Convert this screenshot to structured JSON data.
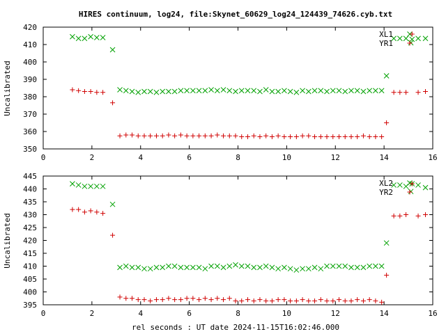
{
  "chart_data": [
    {
      "type": "scatter",
      "title": "HIRES continuum, log24, file:Skynet_60629_log24_124439_74626.cyb.txt",
      "xlabel": "",
      "ylabel": "Uncalibrated",
      "xlim": [
        0,
        16
      ],
      "ylim": [
        350,
        420
      ],
      "xticks": [
        0,
        2,
        4,
        6,
        8,
        10,
        12,
        14,
        16
      ],
      "yticks": [
        350,
        360,
        370,
        380,
        390,
        400,
        410,
        420
      ],
      "grid": false,
      "legend_position": "top-right",
      "series": [
        {
          "name": "XL1",
          "marker": "x",
          "color": "#00a000",
          "x": [
            1.2,
            1.45,
            1.7,
            1.95,
            2.2,
            2.45,
            2.85,
            3.15,
            3.4,
            3.65,
            3.9,
            4.15,
            4.4,
            4.65,
            4.9,
            5.15,
            5.4,
            5.65,
            5.9,
            6.15,
            6.4,
            6.65,
            6.9,
            7.15,
            7.4,
            7.65,
            7.9,
            8.15,
            8.4,
            8.65,
            8.9,
            9.15,
            9.4,
            9.65,
            9.9,
            10.15,
            10.4,
            10.65,
            10.9,
            11.15,
            11.4,
            11.65,
            11.9,
            12.15,
            12.4,
            12.65,
            12.9,
            13.15,
            13.4,
            13.65,
            13.9,
            14.1,
            14.4,
            14.65,
            14.9,
            15.1,
            15.15,
            15.4,
            15.7
          ],
          "y": [
            414.5,
            413.5,
            413.5,
            414.5,
            414.0,
            414.0,
            407.0,
            384.0,
            383.5,
            383.0,
            382.5,
            383.0,
            383.0,
            382.5,
            383.0,
            383.0,
            383.0,
            383.5,
            383.5,
            383.5,
            383.5,
            383.5,
            384.0,
            383.5,
            384.0,
            383.5,
            383.0,
            383.5,
            383.5,
            383.5,
            383.0,
            384.0,
            383.0,
            383.0,
            383.5,
            383.0,
            382.5,
            383.5,
            383.0,
            383.5,
            383.5,
            383.0,
            383.5,
            383.5,
            383.0,
            383.5,
            383.5,
            383.0,
            383.5,
            383.5,
            383.5,
            392.0,
            413.5,
            413.5,
            413.5,
            411.0,
            413.0,
            413.5,
            413.5
          ]
        },
        {
          "name": "YR1",
          "marker": "+",
          "color": "#d00000",
          "x": [
            1.2,
            1.45,
            1.7,
            1.95,
            2.2,
            2.45,
            2.85,
            3.15,
            3.4,
            3.65,
            3.9,
            4.15,
            4.4,
            4.65,
            4.9,
            5.15,
            5.4,
            5.65,
            5.9,
            6.15,
            6.4,
            6.65,
            6.9,
            7.15,
            7.4,
            7.65,
            7.9,
            8.15,
            8.4,
            8.65,
            8.9,
            9.15,
            9.4,
            9.65,
            9.9,
            10.15,
            10.4,
            10.65,
            10.9,
            11.15,
            11.4,
            11.65,
            11.9,
            12.15,
            12.4,
            12.65,
            12.9,
            13.15,
            13.4,
            13.65,
            13.9,
            14.1,
            14.4,
            14.65,
            14.9,
            15.15,
            15.4,
            15.7
          ],
          "y": [
            384.0,
            383.5,
            383.0,
            383.0,
            382.5,
            382.5,
            376.5,
            357.5,
            358.0,
            358.0,
            357.5,
            357.5,
            357.5,
            357.5,
            357.5,
            358.0,
            357.5,
            358.0,
            357.5,
            357.5,
            357.5,
            357.5,
            357.5,
            358.0,
            357.5,
            357.5,
            357.5,
            357.0,
            357.0,
            357.5,
            357.0,
            357.5,
            357.0,
            357.5,
            357.0,
            357.0,
            357.0,
            357.5,
            357.5,
            357.0,
            357.0,
            357.0,
            357.0,
            357.0,
            357.0,
            357.0,
            357.0,
            357.5,
            357.0,
            357.0,
            357.0,
            365.0,
            382.5,
            382.5,
            382.5,
            416.0,
            382.5,
            383.0
          ]
        }
      ]
    },
    {
      "type": "scatter",
      "title": "",
      "xlabel": "rel seconds : UT date 2024-11-15T16:02:46.000",
      "ylabel": "Uncalibrated",
      "xlim": [
        0,
        16
      ],
      "ylim": [
        395,
        445
      ],
      "xticks": [
        0,
        2,
        4,
        6,
        8,
        10,
        12,
        14,
        16
      ],
      "yticks": [
        395,
        400,
        405,
        410,
        415,
        420,
        425,
        430,
        435,
        440,
        445
      ],
      "grid": false,
      "legend_position": "top-right",
      "series": [
        {
          "name": "XL2",
          "marker": "x",
          "color": "#00a000",
          "x": [
            1.2,
            1.45,
            1.7,
            1.95,
            2.2,
            2.45,
            2.85,
            3.15,
            3.4,
            3.65,
            3.9,
            4.15,
            4.4,
            4.65,
            4.9,
            5.15,
            5.4,
            5.65,
            5.9,
            6.15,
            6.4,
            6.65,
            6.9,
            7.15,
            7.4,
            7.65,
            7.9,
            8.15,
            8.4,
            8.65,
            8.9,
            9.15,
            9.4,
            9.65,
            9.9,
            10.15,
            10.4,
            10.65,
            10.9,
            11.15,
            11.4,
            11.65,
            11.9,
            12.15,
            12.4,
            12.65,
            12.9,
            13.15,
            13.4,
            13.65,
            13.9,
            14.1,
            14.4,
            14.65,
            14.9,
            15.1,
            15.15,
            15.4,
            15.7
          ],
          "y": [
            442.0,
            441.5,
            441.0,
            441.0,
            441.0,
            441.0,
            434.0,
            409.5,
            410.0,
            409.5,
            409.5,
            409.0,
            409.0,
            409.5,
            409.5,
            410.0,
            410.0,
            409.5,
            409.5,
            409.5,
            409.5,
            409.0,
            410.0,
            410.0,
            409.5,
            410.0,
            410.5,
            410.0,
            410.0,
            409.5,
            409.5,
            410.0,
            409.5,
            409.0,
            409.5,
            409.0,
            408.5,
            409.0,
            409.0,
            409.5,
            409.0,
            410.0,
            410.0,
            410.0,
            410.0,
            409.5,
            409.5,
            409.5,
            410.0,
            410.0,
            410.0,
            419.0,
            441.5,
            441.5,
            441.0,
            439.0,
            442.0,
            441.5,
            440.5
          ]
        },
        {
          "name": "YR2",
          "marker": "+",
          "color": "#d00000",
          "x": [
            1.2,
            1.45,
            1.7,
            1.95,
            2.2,
            2.45,
            2.85,
            3.15,
            3.4,
            3.65,
            3.9,
            4.15,
            4.4,
            4.65,
            4.9,
            5.15,
            5.4,
            5.65,
            5.9,
            6.15,
            6.4,
            6.65,
            6.9,
            7.15,
            7.4,
            7.65,
            7.9,
            8.15,
            8.4,
            8.65,
            8.9,
            9.15,
            9.4,
            9.65,
            9.9,
            10.15,
            10.4,
            10.65,
            10.9,
            11.15,
            11.4,
            11.65,
            11.9,
            12.15,
            12.4,
            12.65,
            12.9,
            13.15,
            13.4,
            13.65,
            13.9,
            14.1,
            14.4,
            14.65,
            14.9,
            15.15,
            15.4,
            15.7
          ],
          "y": [
            432.0,
            432.0,
            431.0,
            431.5,
            431.0,
            430.5,
            422.0,
            398.0,
            397.5,
            397.5,
            397.0,
            397.0,
            396.5,
            397.0,
            397.0,
            397.5,
            397.0,
            397.0,
            397.5,
            397.5,
            397.0,
            397.5,
            397.0,
            397.5,
            397.0,
            397.5,
            396.5,
            396.5,
            397.0,
            396.5,
            397.0,
            396.5,
            396.5,
            397.0,
            397.0,
            396.5,
            396.5,
            397.0,
            396.5,
            396.5,
            397.0,
            396.5,
            396.5,
            397.0,
            396.5,
            396.5,
            397.0,
            396.5,
            397.0,
            396.5,
            396.0,
            406.5,
            429.5,
            429.5,
            430.0,
            442.0,
            429.5,
            430.0
          ]
        }
      ]
    }
  ]
}
